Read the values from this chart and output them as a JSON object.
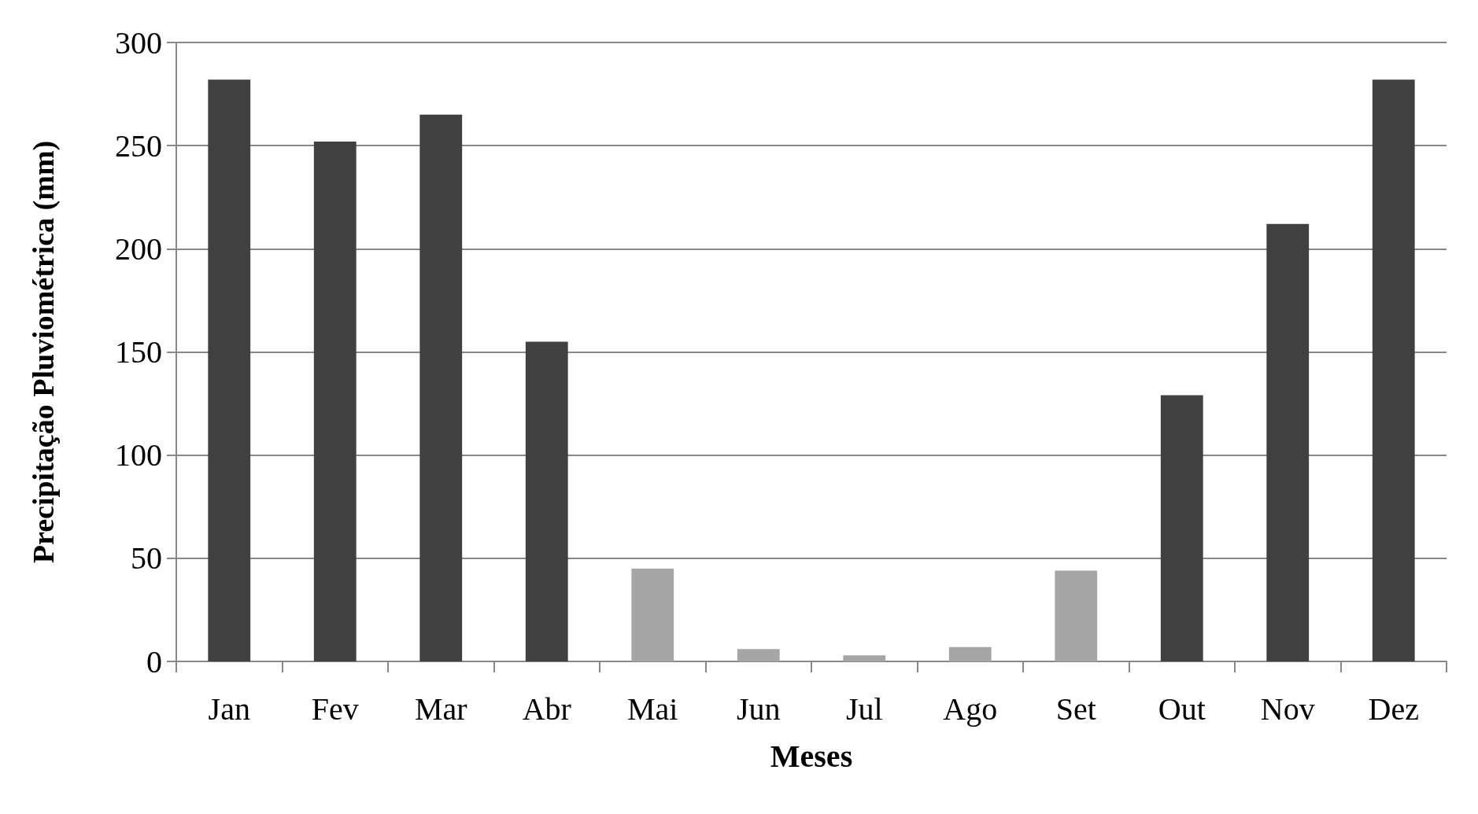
{
  "chart_data": {
    "type": "bar",
    "xlabel": "Meses",
    "ylabel": "Precipitação Pluviométrica (mm)",
    "categories": [
      "Jan",
      "Fev",
      "Mar",
      "Abr",
      "Mai",
      "Jun",
      "Jul",
      "Ago",
      "Set",
      "Out",
      "Nov",
      "Dez"
    ],
    "values": [
      282,
      252,
      265,
      155,
      45,
      6,
      3,
      7,
      44,
      129,
      212,
      282
    ],
    "colors": [
      "#404040",
      "#404040",
      "#404040",
      "#404040",
      "#a6a6a6",
      "#a6a6a6",
      "#a6a6a6",
      "#a6a6a6",
      "#a6a6a6",
      "#404040",
      "#404040",
      "#404040"
    ],
    "ylim": [
      0,
      300
    ],
    "yticks": [
      0,
      50,
      100,
      150,
      200,
      250,
      300
    ],
    "grid": "y"
  }
}
